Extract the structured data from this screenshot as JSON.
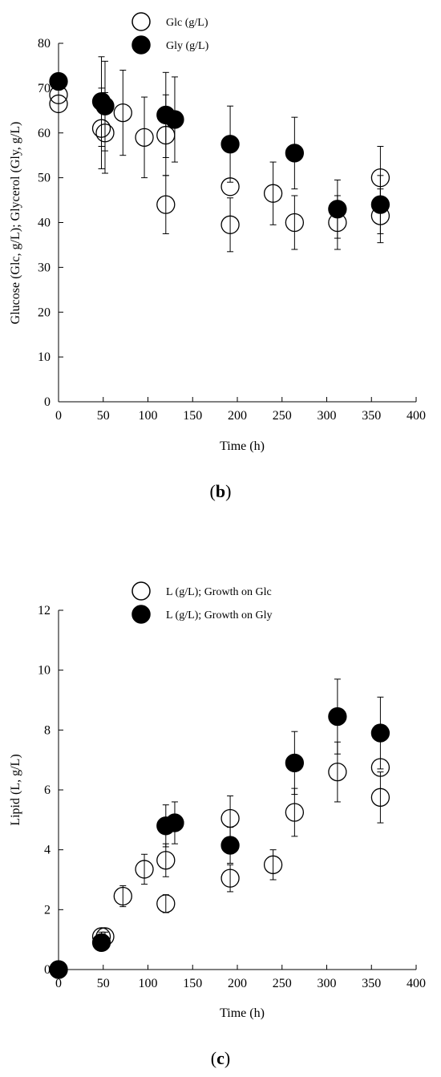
{
  "chart_data": [
    {
      "type": "scatter",
      "panel_label": {
        "open": "(",
        "letter": "b",
        "close": ")"
      },
      "xlabel": "Time (h)",
      "ylabel": "Glucose (Glc, g/L); Glycerol (Gly, g/L)",
      "xlim": [
        0,
        400
      ],
      "ylim": [
        0,
        80
      ],
      "xticks": [
        "0",
        "50",
        "100",
        "150",
        "200",
        "250",
        "300",
        "350",
        "400"
      ],
      "yticks": [
        "0",
        "10",
        "20",
        "30",
        "40",
        "50",
        "60",
        "70",
        "80"
      ],
      "legend_position": "top-center",
      "grid": false,
      "series": [
        {
          "name": "Glc (g/L)",
          "marker": "open-circle",
          "color": "#000000",
          "points": [
            {
              "x": 0,
              "y": 66.5,
              "err": 0
            },
            {
              "x": 0,
              "y": 68.5,
              "err": 0
            },
            {
              "x": 48,
              "y": 61,
              "err": 9
            },
            {
              "x": 52,
              "y": 60,
              "err": 9
            },
            {
              "x": 72,
              "y": 64.5,
              "err": 9.5
            },
            {
              "x": 96,
              "y": 59,
              "err": 9
            },
            {
              "x": 120,
              "y": 59.5,
              "err": 9
            },
            {
              "x": 120,
              "y": 44,
              "err": 6.5
            },
            {
              "x": 192,
              "y": 48,
              "err": 0
            },
            {
              "x": 192,
              "y": 39.5,
              "err": 6
            },
            {
              "x": 240,
              "y": 46.5,
              "err": 7
            },
            {
              "x": 264,
              "y": 40,
              "err": 6
            },
            {
              "x": 312,
              "y": 40,
              "err": 6
            },
            {
              "x": 360,
              "y": 50,
              "err": 7
            },
            {
              "x": 360,
              "y": 41.5,
              "err": 6
            }
          ]
        },
        {
          "name": "Gly (g/L)",
          "marker": "filled-circle",
          "color": "#000000",
          "points": [
            {
              "x": 0,
              "y": 71.5,
              "err": 0
            },
            {
              "x": 48,
              "y": 67,
              "err": 10
            },
            {
              "x": 52,
              "y": 66,
              "err": 10
            },
            {
              "x": 120,
              "y": 64,
              "err": 9.5
            },
            {
              "x": 130,
              "y": 63,
              "err": 9.5
            },
            {
              "x": 192,
              "y": 57.5,
              "err": 8.5
            },
            {
              "x": 264,
              "y": 55.5,
              "err": 8
            },
            {
              "x": 312,
              "y": 43,
              "err": 6.5
            },
            {
              "x": 360,
              "y": 44,
              "err": 6.5
            }
          ]
        }
      ]
    },
    {
      "type": "scatter",
      "panel_label": {
        "open": "(",
        "letter": "c",
        "close": ")"
      },
      "xlabel": "Time (h)",
      "ylabel": "Lipid (L, g/L)",
      "xlim": [
        0,
        400
      ],
      "ylim": [
        0,
        12
      ],
      "xticks": [
        "0",
        "50",
        "100",
        "150",
        "200",
        "250",
        "300",
        "350",
        "400"
      ],
      "yticks": [
        "0",
        "2",
        "4",
        "6",
        "8",
        "10",
        "12"
      ],
      "legend_position": "top-center",
      "grid": false,
      "series": [
        {
          "name": "L (g/L); Growth on Glc",
          "marker": "open-circle",
          "color": "#000000",
          "points": [
            {
              "x": 0,
              "y": 0,
              "err": 0
            },
            {
              "x": 48,
              "y": 1.1,
              "err": 0.15
            },
            {
              "x": 52,
              "y": 1.1,
              "err": 0.15
            },
            {
              "x": 72,
              "y": 2.45,
              "err": 0.35
            },
            {
              "x": 96,
              "y": 3.35,
              "err": 0.5
            },
            {
              "x": 120,
              "y": 3.65,
              "err": 0.55
            },
            {
              "x": 120,
              "y": 2.2,
              "err": 0.3
            },
            {
              "x": 192,
              "y": 5.05,
              "err": 0.75
            },
            {
              "x": 192,
              "y": 3.05,
              "err": 0.45
            },
            {
              "x": 240,
              "y": 3.5,
              "err": 0.5
            },
            {
              "x": 264,
              "y": 5.25,
              "err": 0.8
            },
            {
              "x": 312,
              "y": 6.6,
              "err": 1.0
            },
            {
              "x": 360,
              "y": 6.75,
              "err": 0
            },
            {
              "x": 360,
              "y": 5.75,
              "err": 0.85
            }
          ]
        },
        {
          "name": "L (g/L); Growth on Gly",
          "marker": "filled-circle",
          "color": "#000000",
          "points": [
            {
              "x": 0,
              "y": 0,
              "err": 0
            },
            {
              "x": 48,
              "y": 0.9,
              "err": 0
            },
            {
              "x": 120,
              "y": 4.8,
              "err": 0.7
            },
            {
              "x": 130,
              "y": 4.9,
              "err": 0.7
            },
            {
              "x": 192,
              "y": 4.15,
              "err": 0.6
            },
            {
              "x": 264,
              "y": 6.9,
              "err": 1.05
            },
            {
              "x": 312,
              "y": 8.45,
              "err": 1.25
            },
            {
              "x": 360,
              "y": 7.9,
              "err": 1.2
            }
          ]
        }
      ]
    }
  ]
}
